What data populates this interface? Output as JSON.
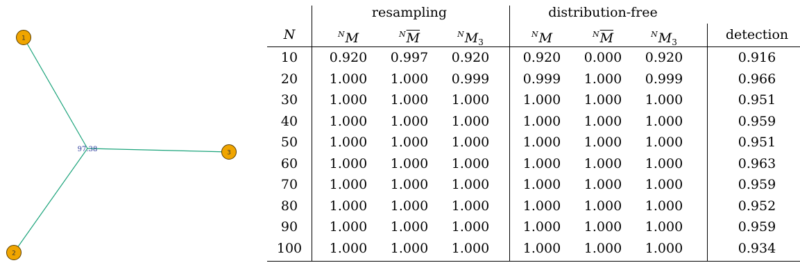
{
  "network": {
    "nodes": [
      "1",
      "2",
      "3"
    ],
    "center_label": "97.38",
    "edge_color": "#1aa37a",
    "node_fill": "#f0a500",
    "node_stroke": "#5a3e00"
  },
  "table": {
    "group_headers": [
      "resampling",
      "distribution-free"
    ],
    "row_header": "N",
    "col_headers": [
      {
        "sup": "N",
        "base": "M",
        "overline": false,
        "sub": ""
      },
      {
        "sup": "N",
        "base": "M",
        "overline": true,
        "sub": ""
      },
      {
        "sup": "N",
        "base": "M",
        "overline": false,
        "sub": "3"
      },
      {
        "sup": "N",
        "base": "M",
        "overline": false,
        "sub": ""
      },
      {
        "sup": "N",
        "base": "M",
        "overline": true,
        "sub": ""
      },
      {
        "sup": "N",
        "base": "M",
        "overline": false,
        "sub": "3"
      }
    ],
    "detection_header": "detection",
    "rows": [
      {
        "n": "10",
        "values": [
          "0.920",
          "0.997",
          "0.920",
          "0.920",
          "0.000",
          "0.920",
          "0.916"
        ]
      },
      {
        "n": "20",
        "values": [
          "1.000",
          "1.000",
          "0.999",
          "0.999",
          "1.000",
          "0.999",
          "0.966"
        ]
      },
      {
        "n": "30",
        "values": [
          "1.000",
          "1.000",
          "1.000",
          "1.000",
          "1.000",
          "1.000",
          "0.951"
        ]
      },
      {
        "n": "40",
        "values": [
          "1.000",
          "1.000",
          "1.000",
          "1.000",
          "1.000",
          "1.000",
          "0.959"
        ]
      },
      {
        "n": "50",
        "values": [
          "1.000",
          "1.000",
          "1.000",
          "1.000",
          "1.000",
          "1.000",
          "0.951"
        ]
      },
      {
        "n": "60",
        "values": [
          "1.000",
          "1.000",
          "1.000",
          "1.000",
          "1.000",
          "1.000",
          "0.963"
        ]
      },
      {
        "n": "70",
        "values": [
          "1.000",
          "1.000",
          "1.000",
          "1.000",
          "1.000",
          "1.000",
          "0.959"
        ]
      },
      {
        "n": "80",
        "values": [
          "1.000",
          "1.000",
          "1.000",
          "1.000",
          "1.000",
          "1.000",
          "0.952"
        ]
      },
      {
        "n": "90",
        "values": [
          "1.000",
          "1.000",
          "1.000",
          "1.000",
          "1.000",
          "1.000",
          "0.959"
        ]
      },
      {
        "n": "100",
        "values": [
          "1.000",
          "1.000",
          "1.000",
          "1.000",
          "1.000",
          "1.000",
          "0.934"
        ]
      }
    ]
  }
}
